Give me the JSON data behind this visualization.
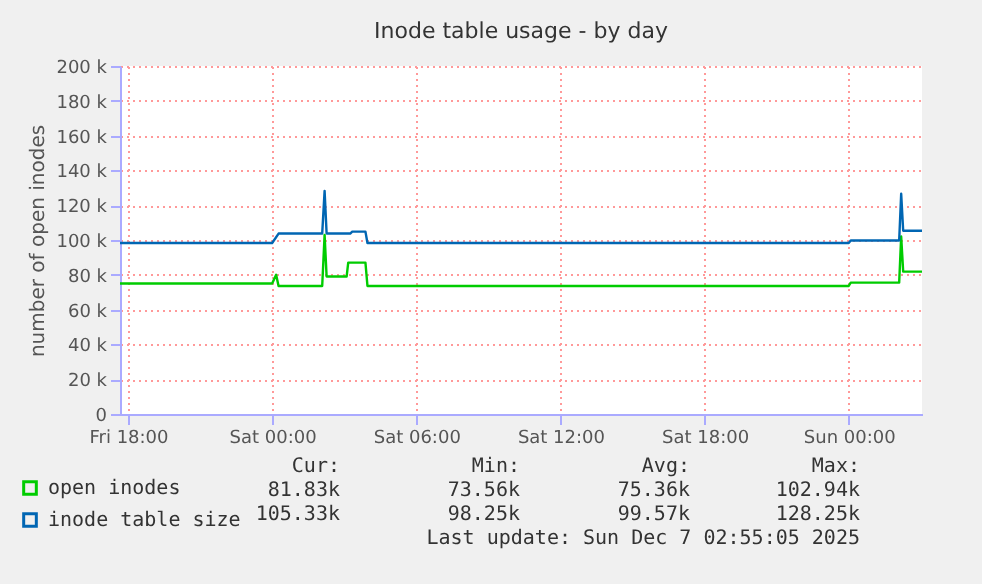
{
  "chart_data": {
    "type": "line",
    "title": "Inode table usage - by day",
    "ylabel": "number of open inodes",
    "xlim": [
      "2025-12-05T17:40",
      "2025-12-07T03:03"
    ],
    "xticks": [
      {
        "value": "2025-12-05T18:00",
        "label": "Fri 18:00"
      },
      {
        "value": "2025-12-06T00:00",
        "label": "Sat 00:00"
      },
      {
        "value": "2025-12-06T06:00",
        "label": "Sat 06:00"
      },
      {
        "value": "2025-12-06T12:00",
        "label": "Sat 12:00"
      },
      {
        "value": "2025-12-06T18:00",
        "label": "Sat 18:00"
      },
      {
        "value": "2025-12-07T00:00",
        "label": "Sun 00:00"
      }
    ],
    "ylim": [
      0,
      200000
    ],
    "yticks": [
      0,
      {
        "value": 20000,
        "label": "20 k"
      },
      {
        "value": 40000,
        "label": "40 k"
      },
      {
        "value": 60000,
        "label": "60 k"
      },
      {
        "value": 80000,
        "label": "80 k"
      },
      {
        "value": 100000,
        "label": "100 k"
      },
      {
        "value": 120000,
        "label": "120 k"
      },
      {
        "value": 140000,
        "label": "140 k"
      },
      {
        "value": 160000,
        "label": "160 k"
      },
      {
        "value": 180000,
        "label": "180 k"
      },
      {
        "value": 200000,
        "label": "200 k"
      }
    ],
    "grid": true,
    "legend": "bottom left",
    "series": [
      {
        "name": "open inodes",
        "color": "#00cc00",
        "x": [
          "2025-12-05T17:40",
          "2025-12-06T00:00",
          "2025-12-06T00:10",
          "2025-12-06T00:16",
          "2025-12-06T02:05",
          "2025-12-06T02:11",
          "2025-12-06T02:16",
          "2025-12-06T03:06",
          "2025-12-06T03:10",
          "2025-12-06T03:53",
          "2025-12-06T03:58",
          "2025-12-07T00:00",
          "2025-12-07T00:05",
          "2025-12-07T02:06",
          "2025-12-07T02:11",
          "2025-12-07T02:16",
          "2025-12-07T03:03"
        ],
        "values": [
          75000,
          75000,
          80000,
          73600,
          73600,
          102940,
          79000,
          79000,
          87000,
          87000,
          73600,
          73600,
          75500,
          75500,
          102000,
          81830,
          81830
        ]
      },
      {
        "name": "inode table size",
        "color": "#0066b3",
        "x": [
          "2025-12-05T17:40",
          "2025-12-06T00:00",
          "2025-12-06T00:16",
          "2025-12-06T02:05",
          "2025-12-06T02:11",
          "2025-12-06T02:16",
          "2025-12-06T03:15",
          "2025-12-06T03:20",
          "2025-12-06T03:53",
          "2025-12-06T03:58",
          "2025-12-07T00:00",
          "2025-12-07T00:05",
          "2025-12-07T02:06",
          "2025-12-07T02:11",
          "2025-12-07T02:16",
          "2025-12-07T03:03"
        ],
        "values": [
          98250,
          98250,
          103700,
          103700,
          128250,
          103700,
          103700,
          104800,
          104800,
          98250,
          98250,
          99700,
          99700,
          126600,
          105330,
          105330
        ]
      }
    ],
    "annotations": [
      "Cur:",
      "Min:",
      "Avg:",
      "Max:",
      "81.83k",
      "73.56k",
      "75.36k",
      "102.94k",
      "105.33k",
      "98.25k",
      "99.57k",
      "128.25k",
      "Last update: Sun Dec  7 02:55:05 2025"
    ]
  }
}
